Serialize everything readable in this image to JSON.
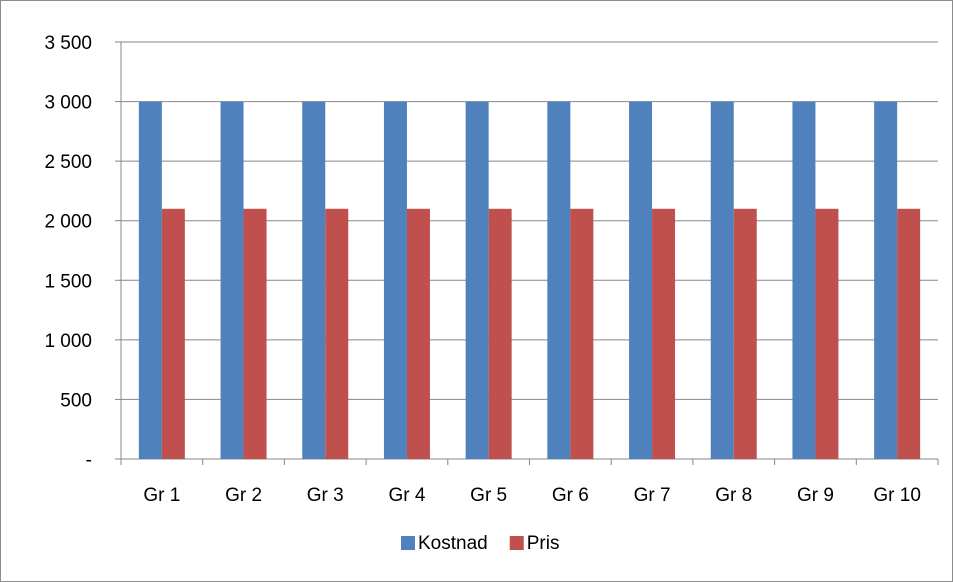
{
  "chart_data": {
    "type": "bar",
    "categories": [
      "Gr 1",
      "Gr 2",
      "Gr 3",
      "Gr 4",
      "Gr 5",
      "Gr 6",
      "Gr 7",
      "Gr 8",
      "Gr 9",
      "Gr 10"
    ],
    "series": [
      {
        "name": "Kostnad",
        "color": "#4f81bd",
        "values": [
          3000,
          3000,
          3000,
          3000,
          3000,
          3000,
          3000,
          3000,
          3000,
          3000
        ]
      },
      {
        "name": "Pris",
        "color": "#c0504d",
        "values": [
          2100,
          2100,
          2100,
          2100,
          2100,
          2100,
          2100,
          2100,
          2100,
          2100
        ]
      }
    ],
    "ylim": [
      0,
      3500
    ],
    "yticks": [
      {
        "value": 0,
        "label": "-"
      },
      {
        "value": 500,
        "label": "500"
      },
      {
        "value": 1000,
        "label": "1 000"
      },
      {
        "value": 1500,
        "label": "1 500"
      },
      {
        "value": 2000,
        "label": "2 000"
      },
      {
        "value": 2500,
        "label": "2 500"
      },
      {
        "value": 3000,
        "label": "3 000"
      },
      {
        "value": 3500,
        "label": "3 500"
      }
    ],
    "grid": true,
    "gridline_color": "#878787",
    "legend_position": "bottom"
  }
}
